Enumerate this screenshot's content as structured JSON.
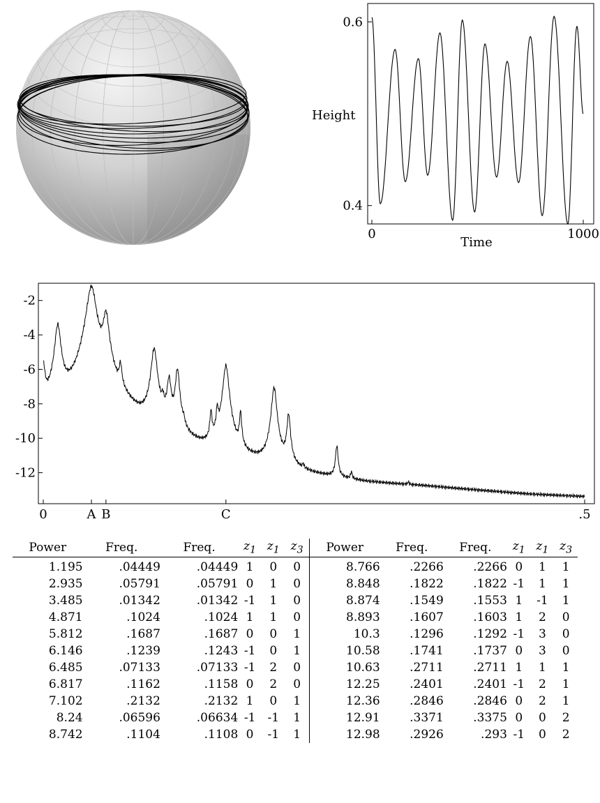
{
  "sphere_figure": {
    "sphere_color": "#c8c8c8",
    "trajectory_color": "#000000"
  },
  "chart_data": [
    {
      "type": "line",
      "xlabel": "Time",
      "ylabel": "Height",
      "xlim": [
        0,
        1000
      ],
      "ylim": [
        0.38,
        0.62
      ],
      "x_ticks": [
        "0",
        "1000"
      ],
      "y_ticks": [
        "0.4",
        "0.6"
      ],
      "peaks": [
        {
          "t": 0,
          "h": 0.605
        },
        {
          "t": 110,
          "h": 0.57
        },
        {
          "t": 220,
          "h": 0.56
        },
        {
          "t": 322,
          "h": 0.588
        },
        {
          "t": 428,
          "h": 0.602
        },
        {
          "t": 535,
          "h": 0.576
        },
        {
          "t": 640,
          "h": 0.557
        },
        {
          "t": 750,
          "h": 0.584
        },
        {
          "t": 862,
          "h": 0.606
        },
        {
          "t": 970,
          "h": 0.595
        }
      ],
      "troughs": [
        {
          "t": 40,
          "h": 0.402
        },
        {
          "t": 158,
          "h": 0.426
        },
        {
          "t": 264,
          "h": 0.433
        },
        {
          "t": 382,
          "h": 0.384
        },
        {
          "t": 486,
          "h": 0.393
        },
        {
          "t": 590,
          "h": 0.431
        },
        {
          "t": 694,
          "h": 0.425
        },
        {
          "t": 806,
          "h": 0.389
        },
        {
          "t": 927,
          "h": 0.38
        }
      ],
      "end": {
        "t": 1000,
        "h": 0.5
      }
    },
    {
      "type": "line",
      "xlim": [
        0,
        0.5
      ],
      "ylim": [
        -13.8,
        -1
      ],
      "y_ticks": [
        -2,
        -4,
        -6,
        -8,
        -10,
        -12
      ],
      "y_tick_labels": [
        "-2",
        "-4",
        "-6",
        "-8",
        "-10",
        "-12"
      ],
      "x_ticks": [
        {
          "x": 0,
          "label": "0"
        },
        {
          "x": 0.04449,
          "label": "A"
        },
        {
          "x": 0.05791,
          "label": "B"
        },
        {
          "x": 0.1687,
          "label": "C"
        },
        {
          "x": 0.5,
          "label": ".5"
        }
      ],
      "baseline": [
        {
          "f": 0.0,
          "y": -9.0
        },
        {
          "f": 0.03,
          "y": -9.2
        },
        {
          "f": 0.05,
          "y": -9.0
        },
        {
          "f": 0.07,
          "y": -9.4
        },
        {
          "f": 0.09,
          "y": -10.2
        },
        {
          "f": 0.11,
          "y": -10.8
        },
        {
          "f": 0.13,
          "y": -11.3
        },
        {
          "f": 0.15,
          "y": -11.6
        },
        {
          "f": 0.17,
          "y": -11.9
        },
        {
          "f": 0.2,
          "y": -12.2
        },
        {
          "f": 0.25,
          "y": -12.7
        },
        {
          "f": 0.3,
          "y": -13.0
        },
        {
          "f": 0.35,
          "y": -13.1
        },
        {
          "f": 0.4,
          "y": -13.3
        },
        {
          "f": 0.45,
          "y": -13.5
        },
        {
          "f": 0.5,
          "y": -13.6
        }
      ],
      "peaks": [
        {
          "f": 0.0,
          "y": -5.9,
          "w": 0.0015
        },
        {
          "f": 0.01342,
          "y": -3.485,
          "w": 0.0025
        },
        {
          "f": 0.04449,
          "y": -1.195,
          "w": 0.004
        },
        {
          "f": 0.05791,
          "y": -2.935,
          "w": 0.0025
        },
        {
          "f": 0.0546,
          "y": -8.3,
          "w": 0.001
        },
        {
          "f": 0.07133,
          "y": -6.485,
          "w": 0.0012
        },
        {
          "f": 0.1024,
          "y": -4.871,
          "w": 0.0025
        },
        {
          "f": 0.1104,
          "y": -8.742,
          "w": 0.0012
        },
        {
          "f": 0.1162,
          "y": -6.817,
          "w": 0.0018
        },
        {
          "f": 0.1239,
          "y": -6.146,
          "w": 0.0018
        },
        {
          "f": 0.1296,
          "y": -10.3,
          "w": 0.0012
        },
        {
          "f": 0.1549,
          "y": -8.874,
          "w": 0.001
        },
        {
          "f": 0.1607,
          "y": -8.893,
          "w": 0.001
        },
        {
          "f": 0.1687,
          "y": -5.812,
          "w": 0.0025
        },
        {
          "f": 0.1822,
          "y": -8.848,
          "w": 0.001
        },
        {
          "f": 0.2132,
          "y": -7.102,
          "w": 0.0022
        },
        {
          "f": 0.2266,
          "y": -8.766,
          "w": 0.0015
        },
        {
          "f": 0.2401,
          "y": -12.25,
          "w": 0.0008
        },
        {
          "f": 0.2711,
          "y": -10.63,
          "w": 0.0012
        },
        {
          "f": 0.2846,
          "y": -12.36,
          "w": 0.0008
        },
        {
          "f": 0.3371,
          "y": -12.91,
          "w": 0.0008
        }
      ]
    }
  ],
  "table": {
    "headers": [
      "Power",
      "Freq.",
      "Freq.",
      "z1",
      "z1",
      "z3",
      "Power",
      "Freq.",
      "Freq.",
      "z1",
      "z1",
      "z3"
    ],
    "z_headers": [
      {
        "base": "z",
        "sub": "1"
      },
      {
        "base": "z",
        "sub": "1"
      },
      {
        "base": "z",
        "sub": "3"
      }
    ],
    "rows": [
      [
        "1.195",
        ".04449",
        ".04449",
        "1",
        "0",
        "0",
        "8.766",
        ".2266",
        ".2266",
        "0",
        "1",
        "1"
      ],
      [
        "2.935",
        ".05791",
        ".05791",
        "0",
        "1",
        "0",
        "8.848",
        ".1822",
        ".1822",
        "-1",
        "1",
        "1"
      ],
      [
        "3.485",
        ".01342",
        ".01342",
        "-1",
        "1",
        "0",
        "8.874",
        ".1549",
        ".1553",
        "1",
        "-1",
        "1"
      ],
      [
        "4.871",
        ".1024",
        ".1024",
        "1",
        "1",
        "0",
        "8.893",
        ".1607",
        ".1603",
        "1",
        "2",
        "0"
      ],
      [
        "5.812",
        ".1687",
        ".1687",
        "0",
        "0",
        "1",
        "10.3",
        ".1296",
        ".1292",
        "-1",
        "3",
        "0"
      ],
      [
        "6.146",
        ".1239",
        ".1243",
        "-1",
        "0",
        "1",
        "10.58",
        ".1741",
        ".1737",
        "0",
        "3",
        "0"
      ],
      [
        "6.485",
        ".07133",
        ".07133",
        "-1",
        "2",
        "0",
        "10.63",
        ".2711",
        ".2711",
        "1",
        "1",
        "1"
      ],
      [
        "6.817",
        ".1162",
        ".1158",
        "0",
        "2",
        "0",
        "12.25",
        ".2401",
        ".2401",
        "-1",
        "2",
        "1"
      ],
      [
        "7.102",
        ".2132",
        ".2132",
        "1",
        "0",
        "1",
        "12.36",
        ".2846",
        ".2846",
        "0",
        "2",
        "1"
      ],
      [
        "8.24",
        ".06596",
        ".06634",
        "-1",
        "-1",
        "1",
        "12.91",
        ".3371",
        ".3375",
        "0",
        "0",
        "2"
      ],
      [
        "8.742",
        ".1104",
        ".1108",
        "0",
        "-1",
        "1",
        "12.98",
        ".2926",
        ".293",
        "-1",
        "0",
        "2"
      ]
    ]
  }
}
